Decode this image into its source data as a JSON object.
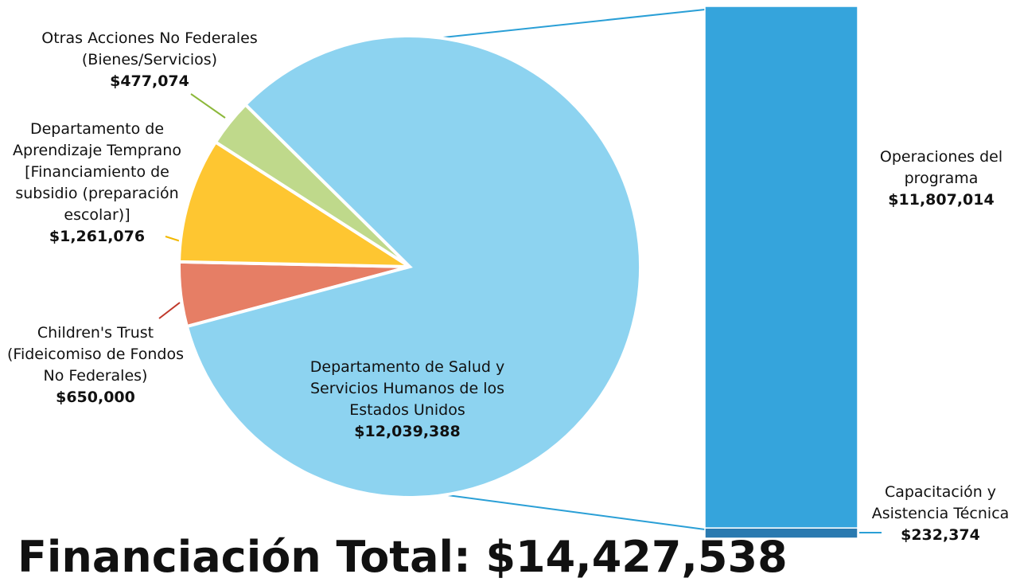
{
  "chart_data": [
    {
      "type": "pie",
      "title": "Financiación Total: $14,427,538",
      "categories": [
        "Children's Trust (Fideicomiso de Fondos No Federales)",
        "Departamento de Aprendizaje Temprano [Financiamiento de subsidio (preparación escolar)]",
        "Otras Acciones No Federales (Bienes/Servicios)",
        "Departamento de Salud y Servicios Humanos de los Estados Unidos"
      ],
      "values": [
        650000,
        1261076,
        477074,
        12039388
      ],
      "value_labels": [
        "$650,000",
        "$1,261,076",
        "$477,074",
        "$12,039,388"
      ],
      "colors": [
        "#e67e65",
        "#fec631",
        "#bfd98b",
        "#8dd3f0"
      ]
    },
    {
      "type": "bar",
      "categories": [
        "Capacitación y Asistencia Técnica",
        "Operaciones del programa"
      ],
      "values": [
        232374,
        11807014
      ],
      "value_labels": [
        "$232,374",
        "$11,807,014"
      ],
      "colors": [
        "#2a7ab0",
        "#35a4dc"
      ]
    }
  ]
}
